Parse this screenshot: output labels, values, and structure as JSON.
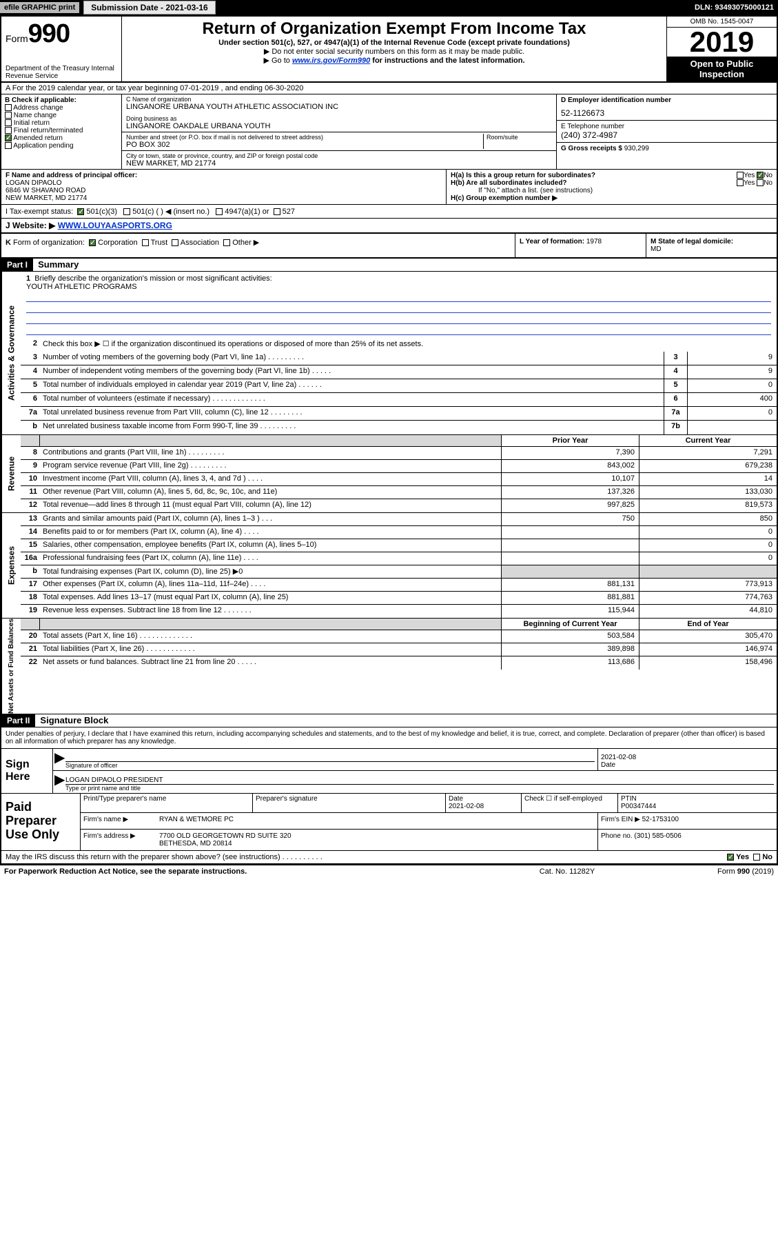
{
  "topbar": {
    "efile": "efile GRAPHIC print",
    "subdate_label": "Submission Date - 2021-03-16",
    "dln": "DLN: 93493075000121"
  },
  "header": {
    "form_label": "Form",
    "form_num": "990",
    "dept": "Department of the Treasury Internal Revenue Service",
    "title": "Return of Organization Exempt From Income Tax",
    "sub": "Under section 501(c), 527, or 4947(a)(1) of the Internal Revenue Code (except private foundations)",
    "sub2": "▶ Do not enter social security numbers on this form as it may be made public.",
    "sub3a": "▶ Go to ",
    "sub3_link": "www.irs.gov/Form990",
    "sub3b": " for instructions and the latest information.",
    "omb": "OMB No. 1545-0047",
    "year": "2019",
    "open": "Open to Public Inspection"
  },
  "line_a": "A For the 2019 calendar year, or tax year beginning 07-01-2019     , and ending 06-30-2020",
  "col_b": {
    "lab": "B Check if applicable:",
    "opts": [
      "Address change",
      "Name change",
      "Initial return",
      "Final return/terminated",
      "Amended return",
      "Application pending"
    ]
  },
  "col_c": {
    "name_lab": "C Name of organization",
    "name": "LINGANORE URBANA YOUTH ATHLETIC ASSOCIATION INC",
    "dba_lab": "Doing business as",
    "dba": "LINGANORE OAKDALE URBANA YOUTH",
    "addr_lab": "Number and street (or P.O. box if mail is not delivered to street address)",
    "addr": "PO BOX 302",
    "room_lab": "Room/suite",
    "city_lab": "City or town, state or province, country, and ZIP or foreign postal code",
    "city": "NEW MARKET, MD  21774"
  },
  "col_d": {
    "lab": "D Employer identification number",
    "val": "52-1126673"
  },
  "col_e": {
    "lab": "E Telephone number",
    "val": "(240) 372-4987"
  },
  "col_g": {
    "lab": "G Gross receipts $ ",
    "val": "930,299"
  },
  "col_f": {
    "lab": "F Name and address of principal officer:",
    "val": "LOGAN DIPAOLO\n6846 W SHAVANO ROAD\nNEW MARKET, MD  21774"
  },
  "col_h": {
    "a": "H(a)  Is this a group return for subordinates?",
    "b": "H(b)  Are all subordinates included?",
    "note": "If \"No,\" attach a list. (see instructions)",
    "c": "H(c)  Group exemption number ▶",
    "yes": "Yes",
    "no": "No"
  },
  "row_i": {
    "lab": "I  Tax-exempt status:",
    "o1": "501(c)(3)",
    "o2": "501(c) (   ) ◀ (insert no.)",
    "o3": "4947(a)(1) or",
    "o4": "527"
  },
  "row_j": {
    "lab": "J  Website: ▶ ",
    "val": "WWW.LOUYAASPORTS.ORG"
  },
  "row_k": "K Form of organization:    Corporation    Trust    Association    Other ▶",
  "row_l": {
    "lab": "L Year of formation: ",
    "val": "1978"
  },
  "row_m": {
    "lab": "M State of legal domicile:",
    "val": "MD"
  },
  "part1": {
    "hdr": "Part I",
    "title": "Summary"
  },
  "mission": {
    "num": "1",
    "txt": "Briefly describe the organization's mission or most significant activities:",
    "val": "YOUTH ATHLETIC PROGRAMS"
  },
  "gov_lines": [
    {
      "n": "2",
      "t": "Check this box ▶ ☐  if the organization discontinued its operations or disposed of more than 25% of its net assets."
    },
    {
      "n": "3",
      "t": "Number of voting members of the governing body (Part VI, line 1a)  .  .  .  .  .  .  .  .  .",
      "b": "3",
      "v": "9"
    },
    {
      "n": "4",
      "t": "Number of independent voting members of the governing body (Part VI, line 1b)  .  .  .  .  .",
      "b": "4",
      "v": "9"
    },
    {
      "n": "5",
      "t": "Total number of individuals employed in calendar year 2019 (Part V, line 2a)  .  .  .  .  .  .",
      "b": "5",
      "v": "0"
    },
    {
      "n": "6",
      "t": "Total number of volunteers (estimate if necessary)  .  .  .  .  .  .  .  .  .  .  .  .  .",
      "b": "6",
      "v": "400"
    },
    {
      "n": "7a",
      "t": "Total unrelated business revenue from Part VIII, column (C), line 12  .  .  .  .  .  .  .  .",
      "b": "7a",
      "v": "0"
    },
    {
      "n": "  b",
      "t": "Net unrelated business taxable income from Form 990-T, line 39  .  .  .  .  .  .  .  .  .",
      "b": "7b",
      "v": ""
    }
  ],
  "colhdr": {
    "prior": "Prior Year",
    "current": "Current Year"
  },
  "revenue": [
    {
      "n": "8",
      "t": "Contributions and grants (Part VIII, line 1h)  .  .  .  .  .  .  .  .  .",
      "p": "7,390",
      "c": "7,291"
    },
    {
      "n": "9",
      "t": "Program service revenue (Part VIII, line 2g)  .  .  .  .  .  .  .  .  .",
      "p": "843,002",
      "c": "679,238"
    },
    {
      "n": "10",
      "t": "Investment income (Part VIII, column (A), lines 3, 4, and 7d )  .  .  .  .",
      "p": "10,107",
      "c": "14"
    },
    {
      "n": "11",
      "t": "Other revenue (Part VIII, column (A), lines 5, 6d, 8c, 9c, 10c, and 11e)",
      "p": "137,326",
      "c": "133,030"
    },
    {
      "n": "12",
      "t": "Total revenue—add lines 8 through 11 (must equal Part VIII, column (A), line 12)",
      "p": "997,825",
      "c": "819,573"
    }
  ],
  "expenses": [
    {
      "n": "13",
      "t": "Grants and similar amounts paid (Part IX, column (A), lines 1–3 )  .  .  .",
      "p": "750",
      "c": "850"
    },
    {
      "n": "14",
      "t": "Benefits paid to or for members (Part IX, column (A), line 4)  .  .  .  .",
      "p": "",
      "c": "0"
    },
    {
      "n": "15",
      "t": "Salaries, other compensation, employee benefits (Part IX, column (A), lines 5–10)",
      "p": "",
      "c": "0"
    },
    {
      "n": "16a",
      "t": "Professional fundraising fees (Part IX, column (A), line 11e)  .  .  .  .",
      "p": "",
      "c": "0"
    },
    {
      "n": "  b",
      "t": "Total fundraising expenses (Part IX, column (D), line 25) ▶0",
      "p": "shade",
      "c": "shade"
    },
    {
      "n": "17",
      "t": "Other expenses (Part IX, column (A), lines 11a–11d, 11f–24e)  .  .  .  .",
      "p": "881,131",
      "c": "773,913"
    },
    {
      "n": "18",
      "t": "Total expenses. Add lines 13–17 (must equal Part IX, column (A), line 25)",
      "p": "881,881",
      "c": "774,763"
    },
    {
      "n": "19",
      "t": "Revenue less expenses. Subtract line 18 from line 12  .  .  .  .  .  .  .",
      "p": "115,944",
      "c": "44,810"
    }
  ],
  "nethdr": {
    "begin": "Beginning of Current Year",
    "end": "End of Year"
  },
  "netassets": [
    {
      "n": "20",
      "t": "Total assets (Part X, line 16)  .  .  .  .  .  .  .  .  .  .  .  .  .",
      "p": "503,584",
      "c": "305,470"
    },
    {
      "n": "21",
      "t": "Total liabilities (Part X, line 26)  .  .  .  .  .  .  .  .  .  .  .  .",
      "p": "389,898",
      "c": "146,974"
    },
    {
      "n": "22",
      "t": "Net assets or fund balances. Subtract line 21 from line 20  .  .  .  .  .",
      "p": "113,686",
      "c": "158,496"
    }
  ],
  "part2": {
    "hdr": "Part II",
    "title": "Signature Block"
  },
  "penalty": "Under penalties of perjury, I declare that I have examined this return, including accompanying schedules and statements, and to the best of my knowledge and belief, it is true, correct, and complete. Declaration of preparer (other than officer) is based on all information of which preparer has any knowledge.",
  "sign": {
    "lab": "Sign Here",
    "sig_lab": "Signature of officer",
    "date": "2021-02-08",
    "date_lab": "Date",
    "name": "LOGAN DIPAOLO  PRESIDENT",
    "name_lab": "Type or print name and title"
  },
  "paid": {
    "lab": "Paid Preparer Use Only",
    "h_name": "Print/Type preparer's name",
    "h_sig": "Preparer's signature",
    "h_date": "Date",
    "date": "2021-02-08",
    "h_check": "Check ☐ if self-employed",
    "h_ptin": "PTIN",
    "ptin": "P00347444",
    "firm_lab": "Firm's name    ▶",
    "firm": "RYAN & WETMORE PC",
    "ein_lab": "Firm's EIN ▶",
    "ein": "52-1753100",
    "addr_lab": "Firm's address ▶",
    "addr": "7700 OLD GEORGETOWN RD SUITE 320\nBETHESDA, MD  20814",
    "phone_lab": "Phone no.",
    "phone": "(301) 585-0506"
  },
  "discuss": {
    "txt": "May the IRS discuss this return with the preparer shown above? (see instructions)  .  .  .  .  .  .  .  .  .  .",
    "yes": "Yes",
    "no": "No"
  },
  "footer": {
    "l": "For Paperwork Reduction Act Notice, see the separate instructions.",
    "m": "Cat. No. 11282Y",
    "r": "Form 990 (2019)"
  },
  "vlabels": {
    "gov": "Activities & Governance",
    "rev": "Revenue",
    "exp": "Expenses",
    "net": "Net Assets or Fund Balances"
  }
}
